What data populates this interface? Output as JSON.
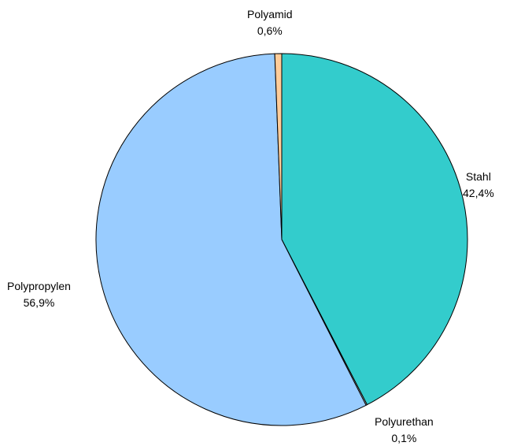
{
  "chart_data": {
    "type": "pie",
    "start": "top",
    "direction": "clockwise",
    "slices": [
      {
        "label": "Stahl",
        "value_label": "42,4%",
        "value": 42.4,
        "color": "#33CCCC"
      },
      {
        "label": "Polyurethan",
        "value_label": "0,1%",
        "value": 0.1,
        "color": "#FFFFFF"
      },
      {
        "label": "Polypropylen",
        "value_label": "56,9%",
        "value": 56.9,
        "color": "#99CCFF"
      },
      {
        "label": "Polyamid",
        "value_label": "0,6%",
        "value": 0.6,
        "color": "#FFCC99"
      }
    ],
    "legend": "none",
    "outline_color": "#000000"
  }
}
